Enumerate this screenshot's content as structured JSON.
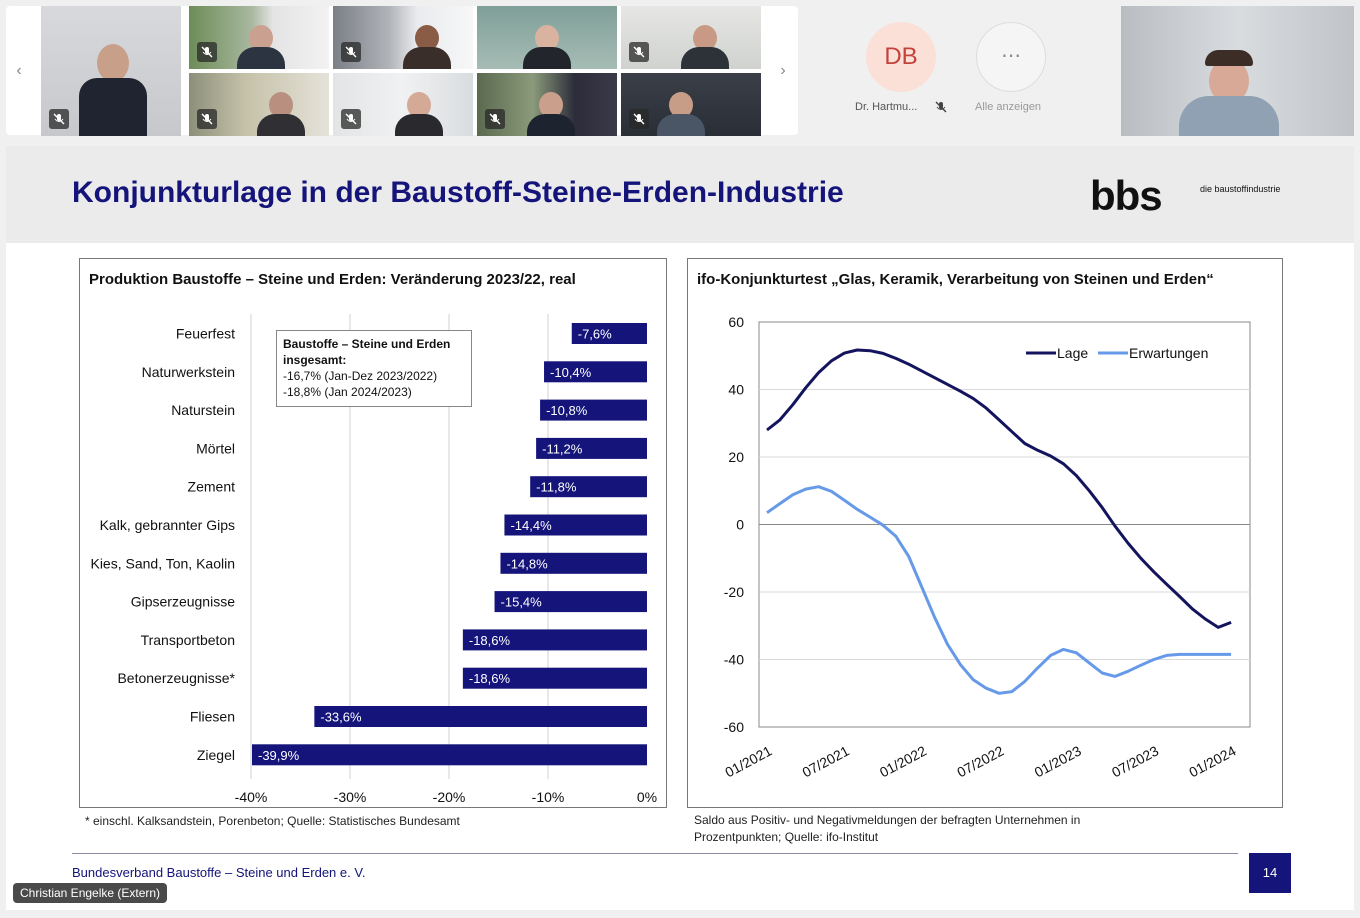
{
  "meeting": {
    "nav": {
      "prev_icon": "chevron-left-icon",
      "next_icon": "chevron-right-icon"
    },
    "participants_overflow": {
      "initials": "DB",
      "name": "Dr. Hartmu...",
      "more_label": "Alle anzeigen",
      "initials_bg": "#fbe0d8",
      "initials_color": "#c4423c"
    },
    "speaker_name": "Christian Engelke (Extern)"
  },
  "slide": {
    "title": "Konjunkturlage in der Baustoff-Steine-Erden-Industrie",
    "logo_text": "bbs",
    "logo_tagline": "die baustoffindustrie",
    "footer": "Bundesverband Baustoffe – Steine und Erden e. V.",
    "page_number": "14",
    "left_chart": {
      "title": "Produktion Baustoffe – Steine und Erden: Veränderung 2023/22, real",
      "box_title": "Baustoffe – Steine und Erden insgesamt:",
      "box_line1": "-16,7% (Jan-Dez 2023/2022)",
      "box_line2": "-18,8% (Jan 2024/2023)",
      "note": "* einschl. Kalksandstein, Porenbeton; Quelle: Statistisches Bundesamt"
    },
    "right_chart": {
      "title": "ifo-Konjunkturtest „Glas, Keramik, Verarbeitung von Steinen und Erden“",
      "note_line1": "Saldo aus Positiv- und Negativmeldungen der befragten Unternehmen in",
      "note_line2": "Prozentpunkten; Quelle: ifo-Institut"
    }
  },
  "chart_data": [
    {
      "type": "bar",
      "orientation": "horizontal",
      "title": "Produktion Baustoffe – Steine und Erden: Veränderung 2023/22, real",
      "categories": [
        "Feuerfest",
        "Naturwerkstein",
        "Naturstein",
        "Mörtel",
        "Zement",
        "Kalk, gebrannter Gips",
        "Kies, Sand, Ton, Kaolin",
        "Gipserzeugnisse",
        "Transportbeton",
        "Betonerzeugnisse*",
        "Fliesen",
        "Ziegel"
      ],
      "values": [
        -7.6,
        -10.4,
        -10.8,
        -11.2,
        -11.8,
        -14.4,
        -14.8,
        -15.4,
        -18.6,
        -18.6,
        -33.6,
        -39.9
      ],
      "value_labels": [
        "-7,6%",
        "-10,4%",
        "-10,8%",
        "-11,2%",
        "-11,8%",
        "-14,4%",
        "-14,8%",
        "-15,4%",
        "-18,6%",
        "-18,6%",
        "-33,6%",
        "-39,9%"
      ],
      "xlim": [
        -40,
        0
      ],
      "x_ticks": [
        -40,
        -30,
        -20,
        -10,
        0
      ],
      "x_tick_labels": [
        "-40%",
        "-30%",
        "-20%",
        "-10%",
        "0%"
      ],
      "color": "#14147a",
      "grid": true
    },
    {
      "type": "line",
      "title": "ifo-Konjunkturtest „Glas, Keramik, Verarbeitung von Steinen und Erden“",
      "x_tick_labels": [
        "01/2021",
        "07/2021",
        "01/2022",
        "07/2022",
        "01/2023",
        "07/2023",
        "01/2024"
      ],
      "x_range_months": [
        0,
        37
      ],
      "ylim": [
        -60,
        60
      ],
      "y_ticks": [
        60,
        40,
        20,
        0,
        -20,
        -40,
        -60
      ],
      "legend_position": "top-right",
      "series": [
        {
          "name": "Lage",
          "color": "#14145e",
          "x": [
            0,
            1,
            2,
            3,
            4,
            5,
            6,
            7,
            8,
            9,
            10,
            11,
            12,
            13,
            14,
            15,
            16,
            17,
            18,
            19,
            20,
            21,
            22,
            23,
            24,
            25,
            26,
            27,
            28,
            29,
            30,
            31,
            32,
            33,
            34,
            35,
            36
          ],
          "values": [
            28,
            31,
            35.5,
            40.5,
            45,
            48.5,
            50.8,
            51.7,
            51.5,
            50.7,
            49.2,
            47.5,
            45.5,
            43.5,
            41.5,
            39.5,
            37.3,
            34.5,
            31,
            27.5,
            24,
            22,
            20.3,
            18,
            14.5,
            10,
            5,
            -0.5,
            -5.5,
            -10,
            -14,
            -17.7,
            -21.3,
            -25,
            -28,
            -30.5,
            -29
          ]
        },
        {
          "name": "Erwartungen",
          "color": "#6699e8",
          "x": [
            0,
            1,
            2,
            3,
            4,
            5,
            6,
            7,
            8,
            9,
            10,
            11,
            12,
            13,
            14,
            15,
            16,
            17,
            18,
            19,
            20,
            21,
            22,
            23,
            24,
            25,
            26,
            27,
            28,
            29,
            30,
            31,
            32,
            33,
            34,
            35,
            36
          ],
          "values": [
            3.5,
            6.2,
            8.8,
            10.5,
            11.2,
            9.8,
            7.2,
            4.5,
            2.2,
            -0.2,
            -3.5,
            -9.5,
            -18.5,
            -27.5,
            -35.5,
            -41.5,
            -46,
            -48.5,
            -50,
            -49.5,
            -46.5,
            -42.5,
            -38.8,
            -37,
            -38,
            -41,
            -44,
            -45,
            -43.5,
            -41.7,
            -40,
            -38.8,
            -38.5,
            -38.5,
            -38.5,
            -38.5,
            -38.5
          ]
        }
      ]
    }
  ]
}
